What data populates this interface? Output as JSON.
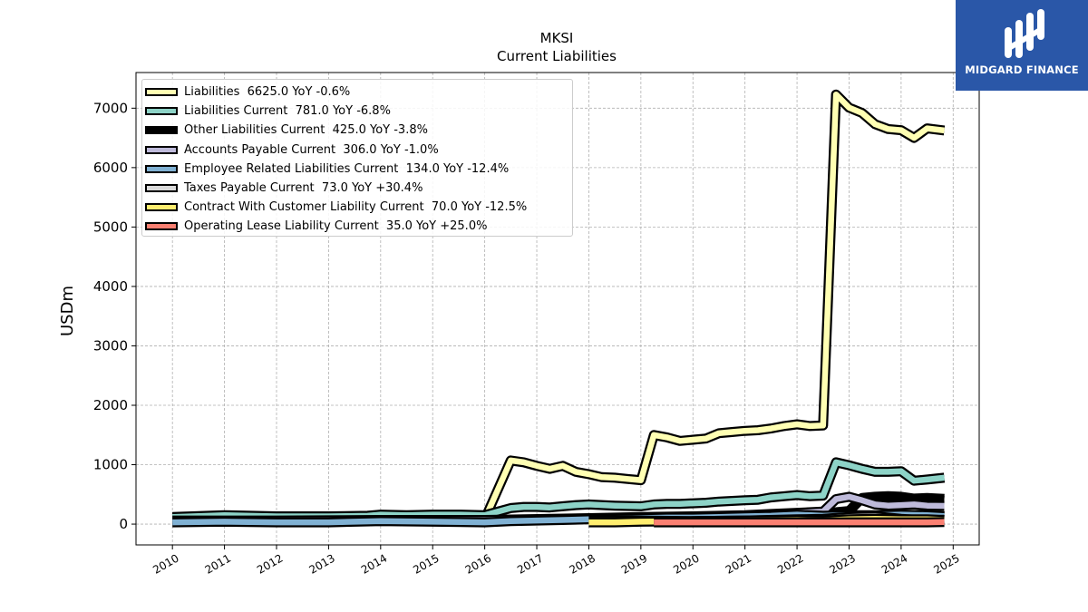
{
  "chart_data": {
    "type": "area",
    "title": "MKSI",
    "subtitle": "Current  Liabilities",
    "ylabel": "USDm",
    "xlabel": "",
    "x_ticks": [
      "2010",
      "2011",
      "2012",
      "2013",
      "2014",
      "2015",
      "2016",
      "2017",
      "2018",
      "2019",
      "2020",
      "2021",
      "2022",
      "2023",
      "2024",
      "2025"
    ],
    "y_ticks": [
      "0",
      "1000",
      "2000",
      "3000",
      "4000",
      "5000",
      "6000",
      "7000"
    ],
    "xlim": [
      2009.3,
      2025.5
    ],
    "ylim": [
      -350,
      7600
    ],
    "grid": true,
    "legend_position": "top-left",
    "series": [
      {
        "name": "Liabilities  6625.0 YoY -0.6%",
        "color": "#ffffb3",
        "x": [
          2010.0,
          2011.0,
          2012.0,
          2013.0,
          2014.0,
          2015.0,
          2015.75,
          2016.0,
          2016.5,
          2016.75,
          2017.0,
          2017.25,
          2017.5,
          2017.75,
          2018.0,
          2018.25,
          2018.5,
          2018.75,
          2019.0,
          2019.25,
          2019.5,
          2019.75,
          2020.0,
          2020.25,
          2020.5,
          2020.75,
          2021.0,
          2021.25,
          2021.5,
          2021.75,
          2022.0,
          2022.25,
          2022.5,
          2022.75,
          2023.0,
          2023.25,
          2023.5,
          2023.75,
          2024.0,
          2024.25,
          2024.5,
          2024.83
        ],
        "y": [
          60,
          60,
          60,
          60,
          60,
          60,
          60,
          80,
          1070,
          1040,
          980,
          930,
          980,
          880,
          840,
          790,
          780,
          760,
          740,
          1500,
          1460,
          1400,
          1420,
          1440,
          1530,
          1550,
          1570,
          1580,
          1610,
          1650,
          1680,
          1650,
          1660,
          7230,
          7010,
          6920,
          6730,
          6650,
          6630,
          6500,
          6660,
          6625
        ]
      },
      {
        "name": "Liabilities Current  781.0 YoY -6.8%",
        "color": "#8dd3c7",
        "x": [
          2010.0,
          2011.0,
          2012.0,
          2013.0,
          2013.75,
          2014.0,
          2014.5,
          2015.0,
          2015.5,
          2016.0,
          2016.5,
          2016.75,
          2017.0,
          2017.25,
          2017.5,
          2017.75,
          2018.0,
          2018.5,
          2019.0,
          2019.25,
          2019.5,
          2019.75,
          2020.0,
          2020.25,
          2020.5,
          2020.75,
          2021.0,
          2021.25,
          2021.5,
          2021.75,
          2022.0,
          2022.25,
          2022.5,
          2022.75,
          2023.0,
          2023.25,
          2023.5,
          2023.75,
          2024.0,
          2024.25,
          2024.5,
          2024.83
        ],
        "y": [
          120,
          150,
          130,
          130,
          140,
          160,
          150,
          160,
          160,
          150,
          270,
          290,
          290,
          280,
          300,
          320,
          330,
          310,
          300,
          330,
          340,
          340,
          350,
          360,
          380,
          390,
          400,
          410,
          450,
          470,
          490,
          470,
          480,
          1040,
          990,
          930,
          880,
          880,
          890,
          730,
          750,
          781
        ]
      },
      {
        "name": "Other Liabilities Current  425.0 YoY -3.8%",
        "color": "#000000",
        "x": [
          2022.5,
          2022.75,
          2023.0,
          2023.25,
          2023.5,
          2023.75,
          2024.0,
          2024.25,
          2024.5,
          2024.83
        ],
        "y": [
          100,
          200,
          220,
          440,
          460,
          470,
          460,
          430,
          440,
          425
        ]
      },
      {
        "name": "Accounts Payable Current  306.0 YoY -1.0%",
        "color": "#bebada",
        "x": [
          2010.0,
          2012.0,
          2014.0,
          2016.0,
          2018.0,
          2019.0,
          2020.0,
          2021.0,
          2021.5,
          2022.0,
          2022.5,
          2022.75,
          2023.0,
          2023.25,
          2023.5,
          2023.75,
          2024.0,
          2024.25,
          2024.5,
          2024.83
        ],
        "y": [
          60,
          60,
          70,
          70,
          100,
          120,
          130,
          150,
          170,
          190,
          210,
          420,
          460,
          400,
          330,
          310,
          320,
          330,
          310,
          306
        ]
      },
      {
        "name": "Employee Related Liabilities Current  134.0 YoY -12.4%",
        "color": "#80b1d3",
        "x": [
          2010.0,
          2011.0,
          2012.0,
          2013.0,
          2014.0,
          2015.0,
          2016.0,
          2016.5,
          2017.0,
          2017.5,
          2018.0,
          2018.5,
          2019.0,
          2019.5,
          2020.0,
          2020.5,
          2021.0,
          2021.5,
          2022.0,
          2022.5,
          2023.0,
          2023.5,
          2024.0,
          2024.5,
          2024.83
        ],
        "y": [
          30,
          40,
          30,
          30,
          50,
          40,
          30,
          50,
          60,
          70,
          80,
          90,
          100,
          110,
          110,
          120,
          130,
          140,
          160,
          140,
          150,
          150,
          160,
          150,
          134
        ]
      },
      {
        "name": "Taxes Payable Current  73.0 YoY +30.4%",
        "color": "#d9d9d9",
        "x": [
          2018.0,
          2019.0,
          2020.0,
          2021.0,
          2022.0,
          2022.5,
          2023.0,
          2023.5,
          2024.0,
          2024.5,
          2024.83
        ],
        "y": [
          60,
          60,
          50,
          60,
          80,
          90,
          120,
          130,
          90,
          60,
          73
        ]
      },
      {
        "name": "Contract With Customer Liability Current  70.0 YoY -12.5%",
        "color": "#ffed6f",
        "x": [
          2018.0,
          2018.5,
          2019.0,
          2020.0,
          2021.0,
          2022.0,
          2022.5,
          2023.0,
          2023.5,
          2024.0,
          2024.5,
          2024.83
        ],
        "y": [
          30,
          30,
          40,
          50,
          60,
          70,
          60,
          80,
          90,
          80,
          80,
          70
        ]
      },
      {
        "name": "Operating Lease Liability Current  35.0 YoY +25.0%",
        "color": "#fb8072",
        "x": [
          2019.25,
          2020.0,
          2021.0,
          2022.0,
          2023.0,
          2024.0,
          2024.5,
          2024.83
        ],
        "y": [
          30,
          30,
          30,
          30,
          30,
          30,
          30,
          35
        ]
      }
    ]
  },
  "logo": {
    "text": "MIDGARD FINANCE"
  }
}
